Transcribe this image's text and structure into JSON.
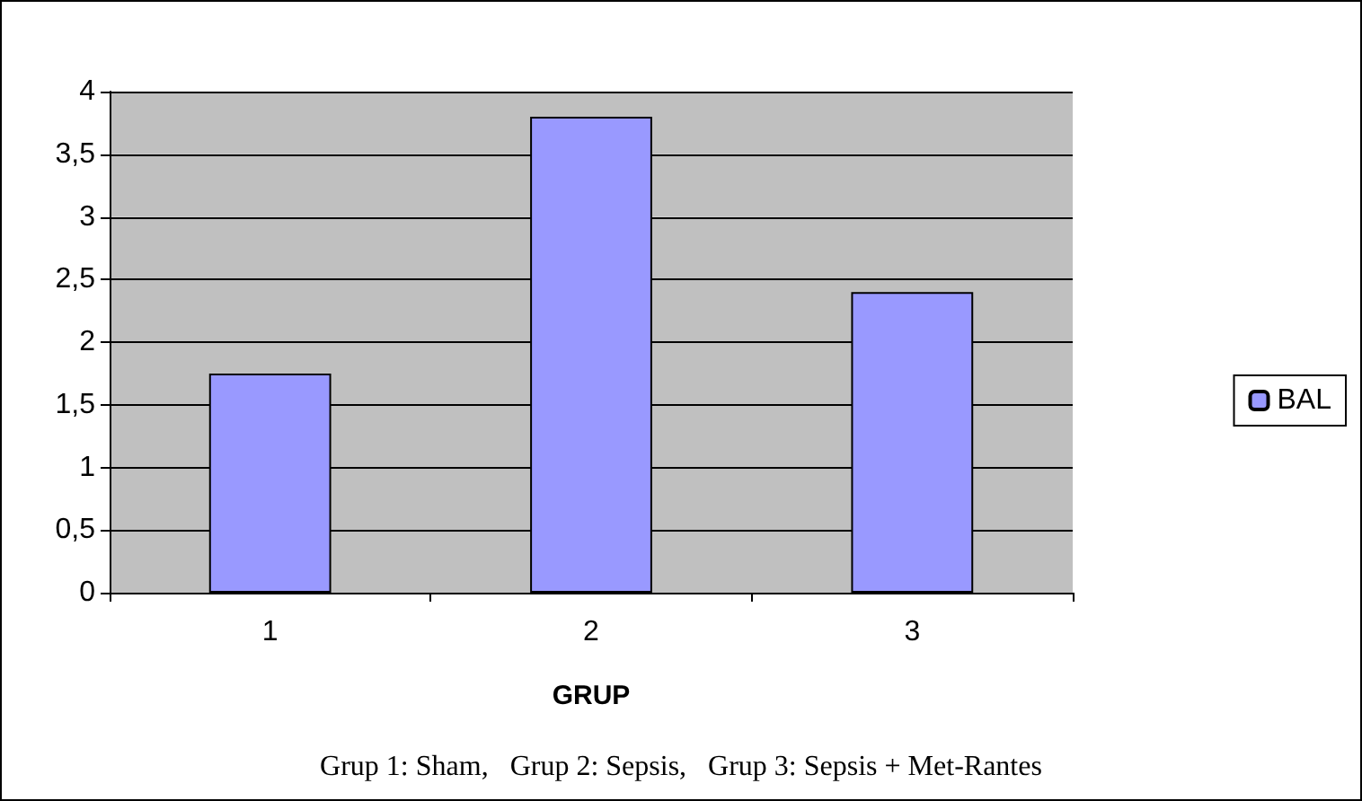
{
  "chart_data": {
    "type": "bar",
    "xlabel": "GRUP",
    "categories": [
      "1",
      "2",
      "3"
    ],
    "series": [
      {
        "name": "BAL",
        "color": "#9999ff",
        "values": [
          1.75,
          3.8,
          2.4
        ]
      }
    ],
    "ylim": [
      0,
      4
    ],
    "yticks": [
      0,
      {
        "value": 0.5,
        "label": "0,5"
      },
      1,
      {
        "value": 1.5,
        "label": "1,5"
      },
      2,
      {
        "value": 2.5,
        "label": "2,5"
      },
      3,
      {
        "value": 3.5,
        "label": "3,5"
      },
      4
    ],
    "grid": "y",
    "legend": "right",
    "annotations": [
      "Grup 1: Sham,   Grup 2: Sepsis,   Grup 3: Sepsis + Met-Rantes"
    ]
  }
}
